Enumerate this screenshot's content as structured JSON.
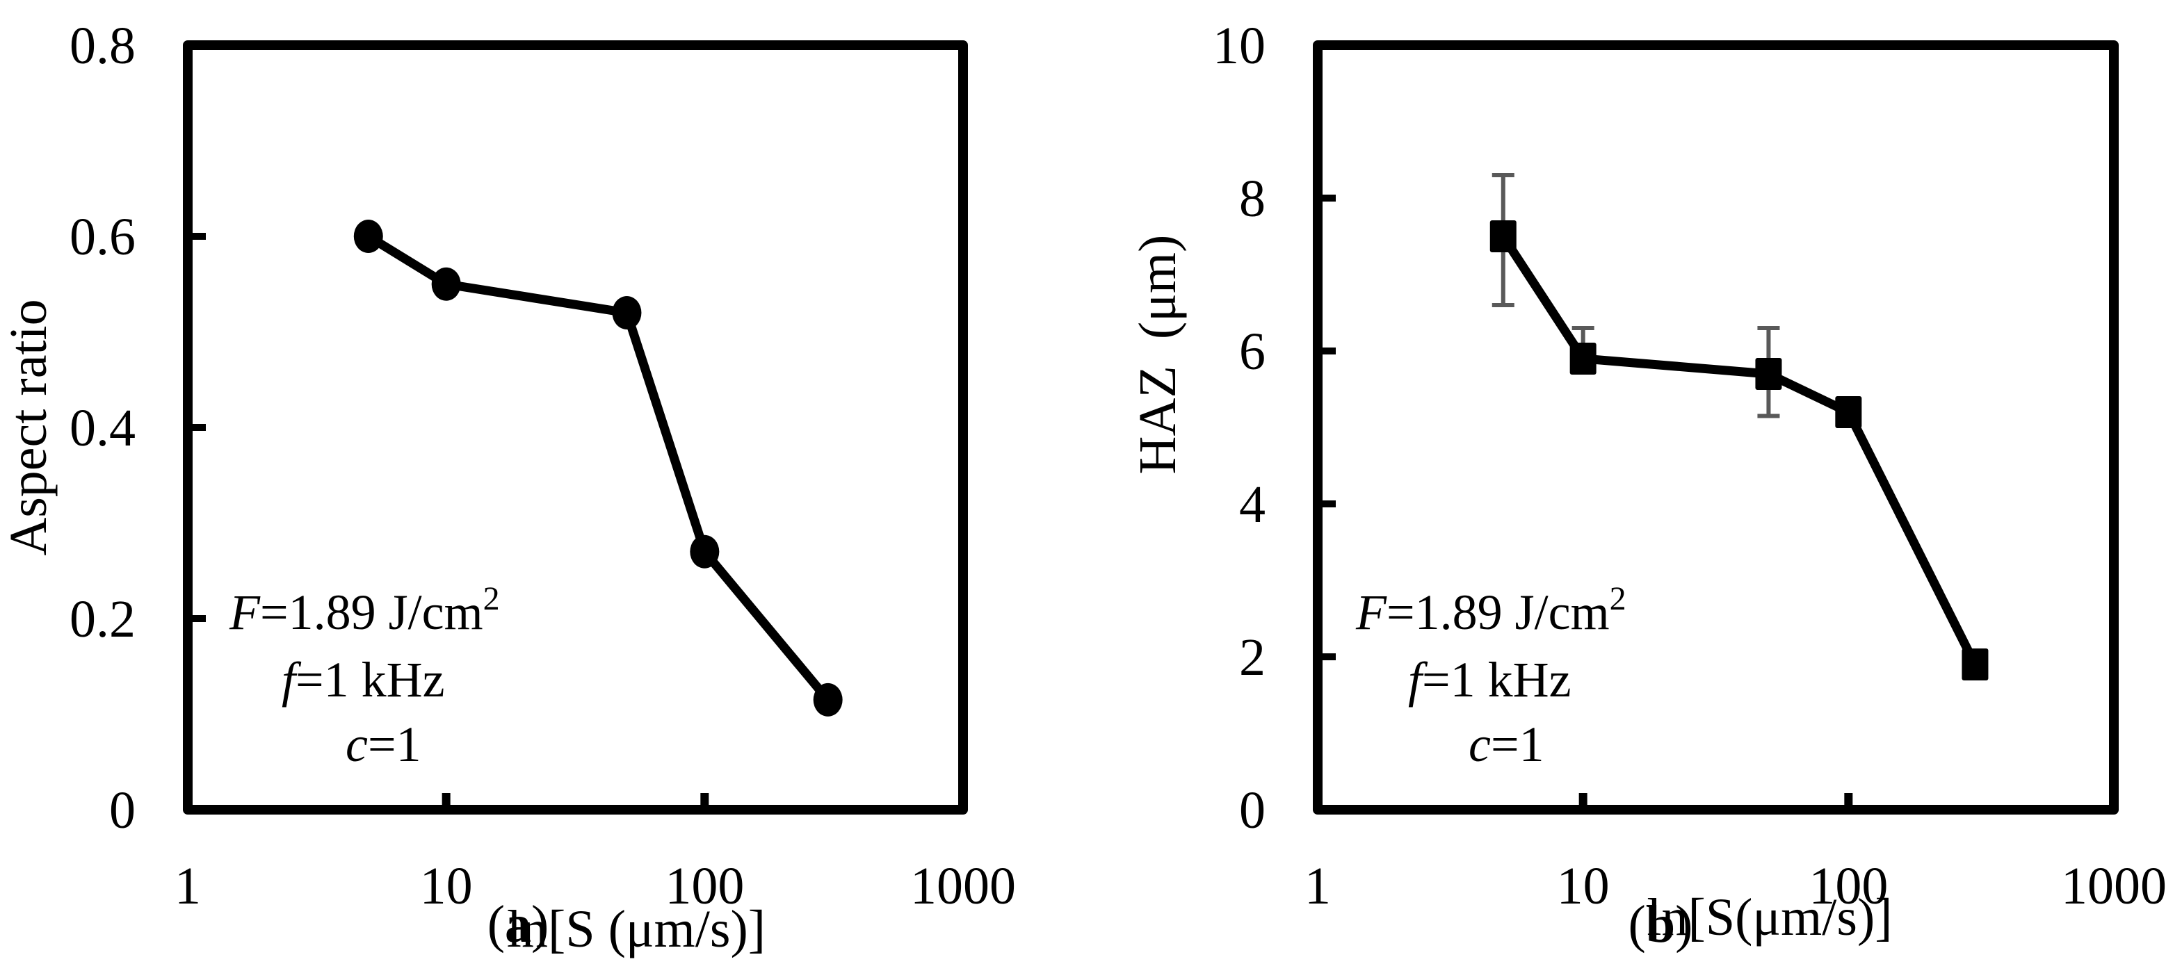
{
  "figure": {
    "background": "#ffffff",
    "line_color": "#000000",
    "errorbar_color": "#595959"
  },
  "chart_data": [
    {
      "id": "a",
      "type": "line",
      "panel_label": "(a)",
      "panel_label_letter": "a",
      "title": "",
      "xlabel": "ln[S (μm/s)]",
      "ylabel": "Aspect ratio",
      "x_scale": "log",
      "xlim": [
        1,
        1000
      ],
      "ylim": [
        0,
        0.8
      ],
      "x_ticks": [
        "1",
        "10",
        "100",
        "1000"
      ],
      "y_ticks": [
        "0",
        "0.2",
        "0.4",
        "0.6",
        "0.8"
      ],
      "grid": false,
      "marker": "circle",
      "series": [
        {
          "name": "Aspect ratio",
          "x": [
            5,
            10,
            50,
            100,
            300
          ],
          "y": [
            0.6,
            0.55,
            0.52,
            0.27,
            0.115
          ]
        }
      ],
      "annotations": {
        "line1_var": "F",
        "line1_rest": "=1.89 J/cm",
        "line1_sup": "2",
        "line2_var": "f",
        "line2_rest": "=1 kHz",
        "line3_var": "c",
        "line3_rest": "=1"
      }
    },
    {
      "id": "b",
      "type": "line",
      "panel_label": "(b)",
      "panel_label_letter": "b",
      "title": "",
      "xlabel": "ln[S(μm/s)]",
      "ylabel": "HAZ  (μm)",
      "x_scale": "log",
      "xlim": [
        1,
        1000
      ],
      "ylim": [
        0,
        10
      ],
      "x_ticks": [
        "1",
        "10",
        "100",
        "1000"
      ],
      "y_ticks": [
        "0",
        "2",
        "4",
        "6",
        "8",
        "10"
      ],
      "grid": false,
      "marker": "square",
      "series": [
        {
          "name": "HAZ",
          "x": [
            5,
            10,
            50,
            100,
            300
          ],
          "y": [
            7.5,
            5.9,
            5.7,
            5.2,
            1.9
          ],
          "error_low": [
            6.6,
            5.9,
            5.15,
            null,
            null
          ],
          "error_high": [
            8.3,
            6.3,
            6.3,
            null,
            null
          ]
        }
      ],
      "annotations": {
        "line1_var": "F",
        "line1_rest": "=1.89 J/cm",
        "line1_sup": "2",
        "line2_var": "f",
        "line2_rest": "=1 kHz",
        "line3_var": "c",
        "line3_rest": "=1"
      }
    }
  ]
}
